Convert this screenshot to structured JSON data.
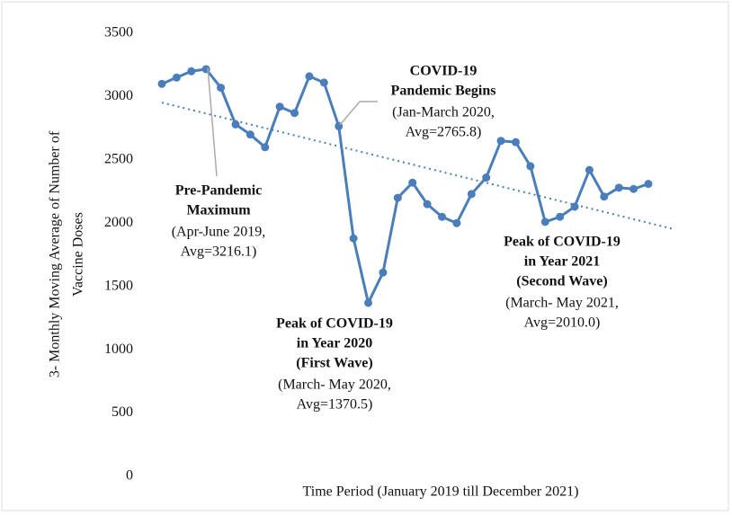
{
  "chart_data": {
    "type": "line",
    "ylabel": [
      "3- Monthly Moving Average of Number of",
      "Vaccine Doses"
    ],
    "xlabel": "Time Period (January 2019 till December 2021)",
    "series": [
      {
        "name": "3-Monthly Moving Average",
        "color": "#4a7ebb",
        "values": [
          3100,
          3150,
          3200,
          3216.1,
          3070,
          2780,
          2700,
          2600,
          2920,
          2870,
          3160,
          3110,
          2765.8,
          1880,
          1370.5,
          1610,
          2200,
          2320,
          2150,
          2050,
          2000,
          2230,
          2360,
          2650,
          2640,
          2450,
          2010.0,
          2050,
          2130,
          2420,
          2210,
          2280,
          2270,
          2310
        ]
      }
    ],
    "ylim": [
      0,
      3500
    ],
    "yticks": [
      0,
      500,
      1000,
      1500,
      2000,
      2500,
      3000,
      3500
    ],
    "trendline": true,
    "annotations": [
      {
        "title": [
          "Pre-Pandemic",
          "Maximum"
        ],
        "detail": [
          "(Apr-June 2019,",
          "Avg=3216.1)"
        ]
      },
      {
        "title": [
          "COVID-19",
          "Pandemic Begins"
        ],
        "detail": [
          "(Jan-March 2020,",
          "Avg=2765.8)"
        ]
      },
      {
        "title": [
          "Peak of COVID-19",
          "in Year 2020",
          "(First Wave)"
        ],
        "detail": [
          "(March- May 2020,",
          "Avg=1370.5)"
        ]
      },
      {
        "title": [
          "Peak of COVID-19",
          "in Year 2021",
          "(Second Wave)"
        ],
        "detail": [
          "(March- May 2021,",
          "Avg=2010.0)"
        ]
      }
    ]
  }
}
